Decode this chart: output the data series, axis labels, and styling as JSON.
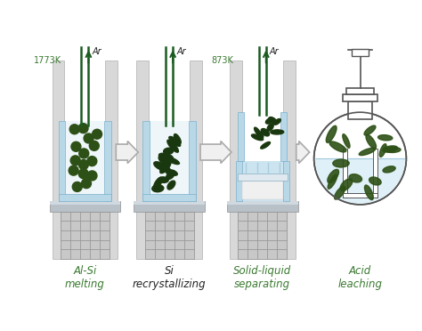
{
  "bg_color": "#ffffff",
  "dark_green": "#2d5016",
  "light_blue": "#b8d8e8",
  "light_blue2": "#cce4f0",
  "rod_color": "#d8d8d8",
  "rod_edge": "#b0b0b0",
  "platform_color": "#b8c0c8",
  "platform_edge": "#909090",
  "coil_color": "#c8c8c8",
  "coil_edge": "#aaaaaa",
  "ar_green": "#1a5c20",
  "text_green": "#3a7a30",
  "text_black": "#222222",
  "arrow_fill": "#f0f0f0",
  "arrow_edge": "#aaaaaa",
  "vessel_edge": "#555555",
  "temp1": "1773K",
  "temp2": "873K",
  "ar_label": "Ar",
  "labels": [
    "Al-Si\nmelting",
    "Si\nrecrystallizing",
    "Solid-liquid\nseparating",
    "Acid\nleaching"
  ],
  "figsize": [
    4.74,
    3.72
  ],
  "dpi": 100
}
